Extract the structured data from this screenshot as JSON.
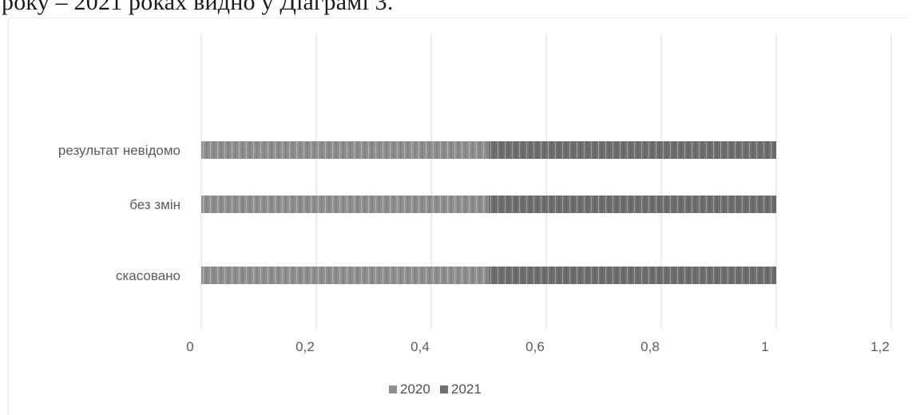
{
  "caption": "року – 2021 роках видно у Діаграмі 3.",
  "colors": {
    "series_2020": "#8f8f8f",
    "series_2021": "#6f6f6f",
    "gridline": "#dedede",
    "text": "#5b5b5b"
  },
  "chart_data": {
    "type": "bar",
    "orientation": "horizontal",
    "stacked": true,
    "categories": [
      "результат невідомо",
      "без змін",
      "скасовано"
    ],
    "series": [
      {
        "name": "2020",
        "values": [
          0.5,
          0.5,
          0.5
        ]
      },
      {
        "name": "2021",
        "values": [
          0.5,
          0.5,
          0.5
        ]
      }
    ],
    "x_ticks": [
      "0",
      "0,2",
      "0,4",
      "0,6",
      "0,8",
      "1",
      "1,2"
    ],
    "xlim": [
      0,
      1.2
    ],
    "grid": true,
    "legend_position": "bottom"
  }
}
